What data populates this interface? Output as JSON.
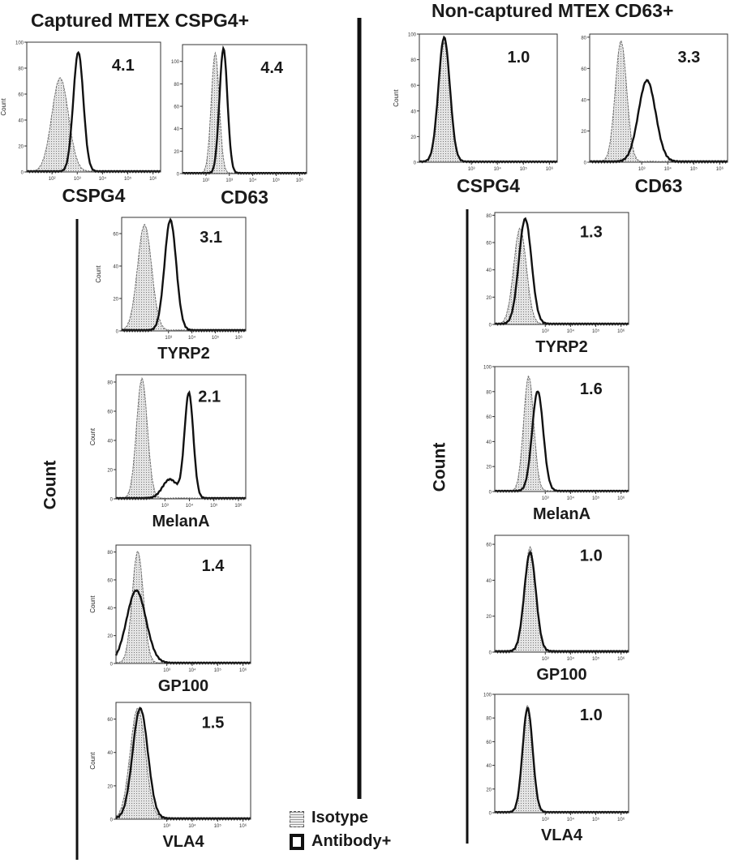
{
  "titles": {
    "left": "Captured MTEX CSPG4+",
    "right": "Non-captured MTEX CD63+"
  },
  "count_label": "Count",
  "legend": {
    "isotype": "Isotype",
    "antibody": "Antibody+",
    "position": "bottom-center"
  },
  "colors": {
    "isotype_fill": "#bdbdbd",
    "isotype_line": "#6e6e6e",
    "antibody_line": "#111111"
  },
  "chart_data": [
    {
      "group": "Captured MTEX CSPG4+",
      "type": "histogram",
      "marker": "CSPG4",
      "ratio": "4.1",
      "ylabel": "Count",
      "xscale": "log",
      "xticks": [
        "10²",
        "10³",
        "10⁴",
        "10⁵",
        "10⁶"
      ],
      "yticks": [
        0,
        20,
        40,
        60,
        80,
        100
      ],
      "ylim": [
        0,
        100
      ],
      "isotype": {
        "peak_fluorescence": 210,
        "peak_count": 72,
        "spread_decades": 0.33
      },
      "antibody": {
        "peak_fluorescence": 1100,
        "peak_count": 92,
        "spread_decades": 0.2
      }
    },
    {
      "group": "Captured MTEX CSPG4+",
      "type": "histogram",
      "marker": "CD63",
      "ratio": "4.4",
      "ylabel": "",
      "xscale": "log",
      "xticks": [
        "10²",
        "10³",
        "10⁴",
        "10⁵",
        "10⁶"
      ],
      "yticks": [
        0,
        20,
        40,
        60,
        80,
        100
      ],
      "ylim": [
        0,
        115
      ],
      "isotype": {
        "peak_fluorescence": 250,
        "peak_count": 107,
        "spread_decades": 0.17
      },
      "antibody": {
        "peak_fluorescence": 560,
        "peak_count": 111,
        "spread_decades": 0.17
      }
    },
    {
      "group": "Non-captured MTEX CD63+",
      "type": "histogram",
      "marker": "CSPG4",
      "ratio": "1.0",
      "ylabel": "Count",
      "xscale": "log",
      "xticks": [
        "10³",
        "10⁴",
        "10⁵",
        "10⁶"
      ],
      "yticks": [
        0,
        20,
        40,
        60,
        80,
        100
      ],
      "ylim": [
        0,
        100
      ],
      "isotype": {
        "peak_fluorescence": 90,
        "peak_count": 93,
        "spread_decades": 0.22
      },
      "antibody": {
        "peak_fluorescence": 90,
        "peak_count": 97,
        "spread_decades": 0.22
      }
    },
    {
      "group": "Non-captured MTEX CD63+",
      "type": "histogram",
      "marker": "CD63",
      "ratio": "3.3",
      "ylabel": "",
      "xscale": "log",
      "xticks": [
        "10³",
        "10⁴",
        "10⁵",
        "10⁶"
      ],
      "yticks": [
        0,
        20,
        40,
        60,
        80
      ],
      "ylim": [
        0,
        82
      ],
      "isotype": {
        "peak_fluorescence": 160,
        "peak_count": 77,
        "spread_decades": 0.22
      },
      "antibody": {
        "peak_fluorescence": 1600,
        "peak_count": 52,
        "spread_decades": 0.33
      }
    },
    {
      "group": "Captured MTEX CSPG4+",
      "type": "histogram",
      "marker": "TYRP2",
      "ratio": "3.1",
      "ylabel": "Count",
      "xscale": "log",
      "xticks": [
        "10³",
        "10⁴",
        "10⁵",
        "10⁶"
      ],
      "yticks": [
        0,
        20,
        40,
        60
      ],
      "ylim": [
        0,
        70
      ],
      "isotype": {
        "peak_fluorescence": 95,
        "peak_count": 65,
        "spread_decades": 0.3
      },
      "antibody": {
        "peak_fluorescence": 1200,
        "peak_count": 68,
        "spread_decades": 0.25
      }
    },
    {
      "group": "Captured MTEX CSPG4+",
      "type": "histogram",
      "marker": "MelanA",
      "ratio": "2.1",
      "ylabel": "Count",
      "xscale": "log",
      "xticks": [
        "10³",
        "10⁴",
        "10⁵",
        "10⁶"
      ],
      "yticks": [
        0,
        20,
        40,
        60,
        80
      ],
      "ylim": [
        0,
        85
      ],
      "isotype": {
        "peak_fluorescence": 115,
        "peak_count": 82,
        "spread_decades": 0.22
      },
      "antibody": {
        "peak_fluorescence": 9500,
        "peak_count": 72,
        "spread_decades": 0.18,
        "shoulder_fluorescence": 1600,
        "shoulder_count": 13
      }
    },
    {
      "group": "Captured MTEX CSPG4+",
      "type": "histogram",
      "marker": "GP100",
      "ratio": "1.4",
      "ylabel": "Count",
      "xscale": "log",
      "xticks": [
        "10³",
        "10⁴",
        "10⁵",
        "10⁶"
      ],
      "yticks": [
        0,
        20,
        40,
        60,
        80
      ],
      "ylim": [
        0,
        85
      ],
      "isotype": {
        "peak_fluorescence": 72,
        "peak_count": 80,
        "spread_decades": 0.22
      },
      "antibody": {
        "peak_fluorescence": 63,
        "peak_count": 52,
        "spread_decades": 0.38
      }
    },
    {
      "group": "Captured MTEX CSPG4+",
      "type": "histogram",
      "marker": "VLA4",
      "ratio": "1.5",
      "ylabel": "Count",
      "xscale": "log",
      "xticks": [
        "10³",
        "10⁴",
        "10⁵",
        "10⁶"
      ],
      "yticks": [
        0,
        20,
        40,
        60
      ],
      "ylim": [
        0,
        70
      ],
      "isotype": {
        "peak_fluorescence": 72,
        "peak_count": 66,
        "spread_decades": 0.3
      },
      "antibody": {
        "peak_fluorescence": 90,
        "peak_count": 66,
        "spread_decades": 0.3
      }
    },
    {
      "group": "Non-captured MTEX CD63+",
      "type": "histogram",
      "marker": "TYRP2",
      "ratio": "1.3",
      "ylabel": "",
      "xscale": "log",
      "xticks": [
        "10³",
        "10⁴",
        "10⁵",
        "10⁶"
      ],
      "yticks": [
        0,
        20,
        40,
        60,
        80
      ],
      "ylim": [
        0,
        82
      ],
      "isotype": {
        "peak_fluorescence": 100,
        "peak_count": 70,
        "spread_decades": 0.25
      },
      "antibody": {
        "peak_fluorescence": 160,
        "peak_count": 77,
        "spread_decades": 0.25
      }
    },
    {
      "group": "Non-captured MTEX CD63+",
      "type": "histogram",
      "marker": "MelanA",
      "ratio": "1.6",
      "ylabel": "",
      "xscale": "log",
      "xticks": [
        "10³",
        "10⁴",
        "10⁵",
        "10⁶"
      ],
      "yticks": [
        0,
        20,
        40,
        60,
        80,
        100
      ],
      "ylim": [
        0,
        100
      ],
      "isotype": {
        "peak_fluorescence": 220,
        "peak_count": 92,
        "spread_decades": 0.2
      },
      "antibody": {
        "peak_fluorescence": 500,
        "peak_count": 80,
        "spread_decades": 0.22
      }
    },
    {
      "group": "Non-captured MTEX CD63+",
      "type": "histogram",
      "marker": "GP100",
      "ratio": "1.0",
      "ylabel": "",
      "xscale": "log",
      "xticks": [
        "10³",
        "10⁴",
        "10⁵",
        "10⁶"
      ],
      "yticks": [
        0,
        20,
        40,
        60
      ],
      "ylim": [
        0,
        65
      ],
      "isotype": {
        "peak_fluorescence": 250,
        "peak_count": 58,
        "spread_decades": 0.22
      },
      "antibody": {
        "peak_fluorescence": 250,
        "peak_count": 55,
        "spread_decades": 0.23
      }
    },
    {
      "group": "Non-captured MTEX CD63+",
      "type": "histogram",
      "marker": "VLA4",
      "ratio": "1.0",
      "ylabel": "",
      "xscale": "log",
      "xticks": [
        "10³",
        "10⁴",
        "10⁵",
        "10⁶"
      ],
      "yticks": [
        0,
        20,
        40,
        60,
        80,
        100
      ],
      "ylim": [
        0,
        100
      ],
      "isotype": {
        "peak_fluorescence": 200,
        "peak_count": 90,
        "spread_decades": 0.2
      },
      "antibody": {
        "peak_fluorescence": 200,
        "peak_count": 88,
        "spread_decades": 0.2
      }
    }
  ]
}
